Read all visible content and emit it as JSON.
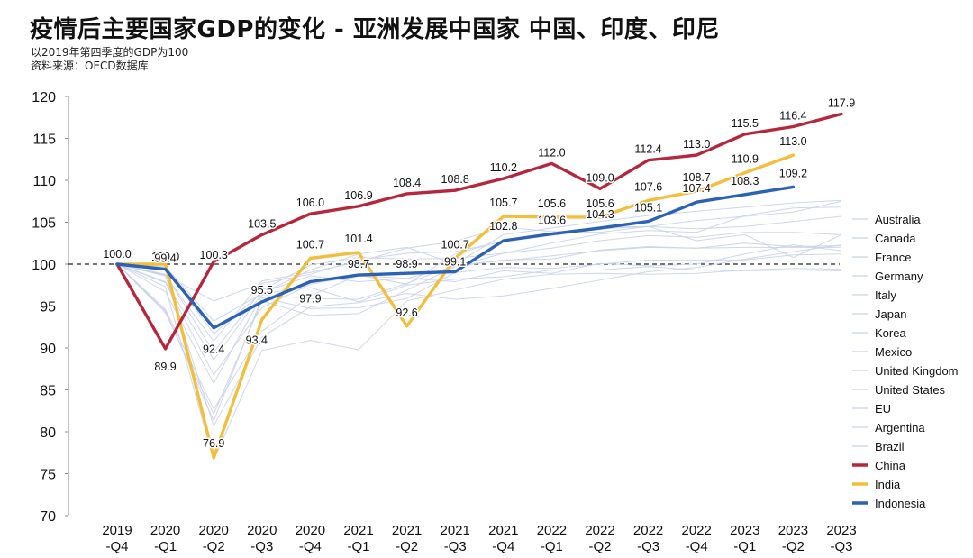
{
  "header": {
    "title": "疫情后主要国家GDP的变化 - 亚洲发展中国家 中国、印度、印尼",
    "subtitle": "以2019年第四季度的GDP为100",
    "source": "资料来源：OECD数据库"
  },
  "chart_data": {
    "type": "line",
    "title": "疫情后主要国家GDP的变化 - 亚洲发展中国家 中国、印度、印尼",
    "xlabel": "",
    "ylabel": "",
    "ylim": [
      70,
      120
    ],
    "yticks": [
      "70",
      "75",
      "80",
      "85",
      "90",
      "95",
      "100",
      "105",
      "110",
      "115",
      "120"
    ],
    "reference_line": 100,
    "categories": [
      [
        "2019",
        "-Q4"
      ],
      [
        "2020",
        "-Q1"
      ],
      [
        "2020",
        "-Q2"
      ],
      [
        "2020",
        "-Q3"
      ],
      [
        "2020",
        "-Q4"
      ],
      [
        "2021",
        "-Q1"
      ],
      [
        "2021",
        "-Q2"
      ],
      [
        "2021",
        "-Q3"
      ],
      [
        "2021",
        "-Q4"
      ],
      [
        "2022",
        "-Q1"
      ],
      [
        "2022",
        "-Q2"
      ],
      [
        "2022",
        "-Q3"
      ],
      [
        "2022",
        "-Q4"
      ],
      [
        "2023",
        "-Q1"
      ],
      [
        "2023",
        "-Q2"
      ],
      [
        "2023",
        "-Q3"
      ]
    ],
    "series": [
      {
        "name": "Australia",
        "color": "#c9d2e8",
        "highlight": false,
        "values": [
          100,
          99.7,
          93.2,
          96.5,
          99.3,
          101.2,
          102.0,
          100.0,
          103.5,
          104.3,
          105.1,
          105.8,
          106.3,
          106.8,
          107.3,
          107.6
        ]
      },
      {
        "name": "Canada",
        "color": "#c9d2e8",
        "highlight": false,
        "values": [
          100,
          97.8,
          86.8,
          94.8,
          97.6,
          98.6,
          98.3,
          99.7,
          101.3,
          101.9,
          102.8,
          103.4,
          103.2,
          103.8,
          103.8,
          103.5
        ]
      },
      {
        "name": "France",
        "color": "#c9d2e8",
        "highlight": false,
        "values": [
          100,
          94.4,
          81.3,
          96.0,
          94.7,
          94.8,
          95.9,
          99.0,
          99.6,
          99.5,
          100.0,
          100.5,
          100.5,
          100.5,
          101.1,
          101.2
        ]
      },
      {
        "name": "Germany",
        "color": "#c9d2e8",
        "highlight": false,
        "values": [
          100,
          97.9,
          88.6,
          96.5,
          97.2,
          95.5,
          97.5,
          98.2,
          98.5,
          99.3,
          99.3,
          99.7,
          99.3,
          99.2,
          99.3,
          99.2
        ]
      },
      {
        "name": "Italy",
        "color": "#c9d2e8",
        "highlight": false,
        "values": [
          100,
          94.2,
          82.1,
          95.6,
          93.9,
          94.1,
          96.9,
          99.7,
          100.5,
          100.6,
          101.7,
          102.1,
          101.9,
          102.5,
          102.1,
          102.2
        ]
      },
      {
        "name": "Japan",
        "color": "#c9d2e8",
        "highlight": false,
        "values": [
          100,
          99.5,
          91.7,
          96.6,
          98.6,
          97.9,
          98.3,
          97.9,
          99.2,
          98.9,
          100.1,
          99.8,
          100.0,
          101.2,
          102.3,
          101.6
        ]
      },
      {
        "name": "Korea",
        "color": "#c9d2e8",
        "highlight": false,
        "values": [
          100,
          98.7,
          95.6,
          97.7,
          98.8,
          100.5,
          101.3,
          101.5,
          102.7,
          103.4,
          104.2,
          104.5,
          104.2,
          104.5,
          105.1,
          105.7
        ]
      },
      {
        "name": "Mexico",
        "color": "#c9d2e8",
        "highlight": false,
        "values": [
          100,
          98.6,
          80.7,
          91.3,
          94.9,
          95.4,
          96.5,
          95.8,
          96.2,
          97.1,
          98.1,
          99.1,
          99.6,
          100.6,
          101.5,
          102.3
        ]
      },
      {
        "name": "United Kingdom",
        "color": "#c9d2e8",
        "highlight": false,
        "values": [
          100,
          97.3,
          76.6,
          89.7,
          90.9,
          89.8,
          95.6,
          96.9,
          98.2,
          98.8,
          98.9,
          98.8,
          98.9,
          99.3,
          99.5,
          99.4
        ]
      },
      {
        "name": "United States",
        "color": "#c9d2e8",
        "highlight": false,
        "values": [
          100,
          98.6,
          90.8,
          98.0,
          99.0,
          100.3,
          101.9,
          102.7,
          104.4,
          103.9,
          103.8,
          104.5,
          105.2,
          105.7,
          106.2,
          107.5
        ]
      },
      {
        "name": "EU",
        "color": "#c9d2e8",
        "highlight": false,
        "values": [
          100,
          96.7,
          85.8,
          96.3,
          95.9,
          95.8,
          97.7,
          99.9,
          100.4,
          101.0,
          101.6,
          102.0,
          101.9,
          102.0,
          102.0,
          102.0
        ]
      },
      {
        "name": "Argentina",
        "color": "#c9d2e8",
        "highlight": false,
        "values": [
          100,
          94.6,
          82.7,
          92.0,
          96.2,
          98.7,
          97.6,
          101.2,
          102.8,
          103.5,
          104.4,
          104.5,
          102.8,
          103.5,
          100.8,
          103.5
        ]
      },
      {
        "name": "Brazil",
        "color": "#c9d2e8",
        "highlight": false,
        "values": [
          100,
          98.8,
          89.5,
          96.9,
          99.9,
          100.8,
          100.6,
          100.7,
          101.3,
          102.5,
          103.6,
          104.0,
          103.8,
          105.8,
          106.7,
          106.8
        ]
      },
      {
        "name": "China",
        "color": "#b5273d",
        "highlight": true,
        "values": [
          100.0,
          89.9,
          100.3,
          103.5,
          106.0,
          106.9,
          108.4,
          108.8,
          110.2,
          112.0,
          109.0,
          112.4,
          113.0,
          115.5,
          116.4,
          117.9
        ],
        "labels": [
          "100.0",
          "89.9",
          "100.3",
          "103.5",
          "106.0",
          "106.9",
          "108.4",
          "108.8",
          "110.2",
          "112.0",
          "109.0",
          "112.4",
          "113.0",
          "115.5",
          "116.4",
          "117.9"
        ]
      },
      {
        "name": "India",
        "color": "#f2bf3c",
        "highlight": true,
        "values": [
          100.0,
          100.0,
          76.9,
          93.4,
          100.7,
          101.4,
          92.6,
          100.7,
          105.7,
          105.6,
          105.6,
          107.6,
          108.7,
          110.9,
          113.0,
          null
        ],
        "labels": [
          "",
          "100.0",
          "76.9",
          "93.4",
          "100.7",
          "101.4",
          "92.6",
          "100.7",
          "105.7",
          "105.6",
          "105.6",
          "107.6",
          "108.7",
          "110.9",
          "113.0",
          ""
        ]
      },
      {
        "name": "Indonesia",
        "color": "#2c62b4",
        "highlight": true,
        "values": [
          100.0,
          99.4,
          92.4,
          95.5,
          97.9,
          98.7,
          98.9,
          99.1,
          102.8,
          103.6,
          104.3,
          105.1,
          107.4,
          108.3,
          109.2,
          null
        ],
        "labels": [
          "100.0",
          "99.4",
          "92.4",
          "95.5",
          "97.9",
          "98.7",
          "98.9",
          "99.1",
          "102.8",
          "103.6",
          "104.3",
          "105.1",
          "107.4",
          "108.3",
          "109.2",
          ""
        ]
      }
    ]
  }
}
